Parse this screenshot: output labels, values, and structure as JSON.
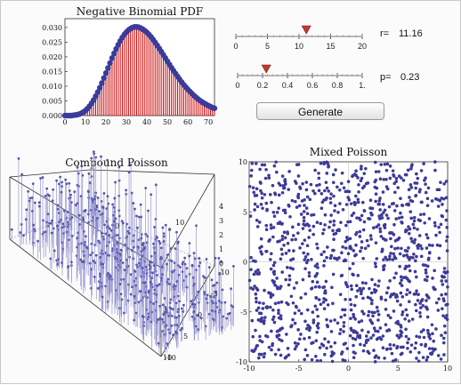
{
  "controls": {
    "r_label": "r=",
    "r_value": "11.16",
    "r_slider": {
      "min": 0,
      "max": 20,
      "value": 11.16,
      "tick_labels": [
        "0",
        "5",
        "10",
        "15",
        "20"
      ]
    },
    "p_label": "p=",
    "p_value": "0.23",
    "p_slider": {
      "min": 0,
      "max": 1,
      "value": 0.23,
      "tick_labels": [
        "0",
        "0.2",
        "0.4",
        "0.6",
        "0.8",
        "1."
      ]
    },
    "generate_label": "Generate",
    "thumb_color": "#c0392b"
  },
  "chart_data": [
    {
      "type": "bar",
      "title": "Negative Binomial PDF",
      "xlim": [
        0,
        73
      ],
      "ylim": [
        0,
        0.033
      ],
      "x_tick_labels": [
        "0",
        "10",
        "20",
        "30",
        "40",
        "50",
        "60",
        "70"
      ],
      "y_tick_labels": [
        "0.000",
        "0.005",
        "0.010",
        "0.015",
        "0.020",
        "0.025",
        "0.030"
      ],
      "bar_color": "#cc0000",
      "point_color": "#3b3b9a",
      "series": [
        {
          "values": [
            0.0,
            0.0,
            0.0,
            0.0,
            0.0001,
            0.0002,
            0.0003,
            0.0005,
            0.0008,
            0.0012,
            0.0017,
            0.0024,
            0.0032,
            0.0042,
            0.0053,
            0.0066,
            0.008,
            0.0095,
            0.0111,
            0.0128,
            0.0145,
            0.0162,
            0.0179,
            0.0196,
            0.0212,
            0.0227,
            0.0241,
            0.0254,
            0.0266,
            0.0276,
            0.0284,
            0.0291,
            0.0296,
            0.03,
            0.0302,
            0.0302,
            0.0301,
            0.0298,
            0.0294,
            0.0289,
            0.0283,
            0.0276,
            0.0268,
            0.0259,
            0.0249,
            0.0239,
            0.0229,
            0.0218,
            0.0207,
            0.0196,
            0.0185,
            0.0174,
            0.0163,
            0.0153,
            0.0143,
            0.0133,
            0.0123,
            0.0114,
            0.0105,
            0.0097,
            0.0089,
            0.0082,
            0.0075,
            0.0068,
            0.0062,
            0.0056,
            0.0051,
            0.0046,
            0.0042,
            0.0038,
            0.0034,
            0.0031,
            0.0027,
            0.0025
          ]
        }
      ]
    },
    {
      "type": "scatter",
      "title": "Compound Poisson",
      "x_tick_labels": [
        "-10",
        "-5",
        "0",
        "5",
        "10"
      ],
      "y_tick_labels": [
        "-10",
        "-5",
        "0",
        "5",
        "10"
      ],
      "z_tick_labels": [
        "0",
        "1",
        "2",
        "3",
        "4"
      ],
      "point_count": 600,
      "point_color": "#5555aa"
    },
    {
      "type": "scatter",
      "title": "Mixed Poisson",
      "xlim": [
        -10,
        10
      ],
      "ylim": [
        -10,
        10
      ],
      "x_tick_labels": [
        "-10",
        "-5",
        "0",
        "5",
        "10"
      ],
      "y_tick_labels": [
        "-10",
        "-5",
        "0",
        "5",
        "10"
      ],
      "point_count": 1100,
      "point_color": "#3b3b9a"
    }
  ]
}
